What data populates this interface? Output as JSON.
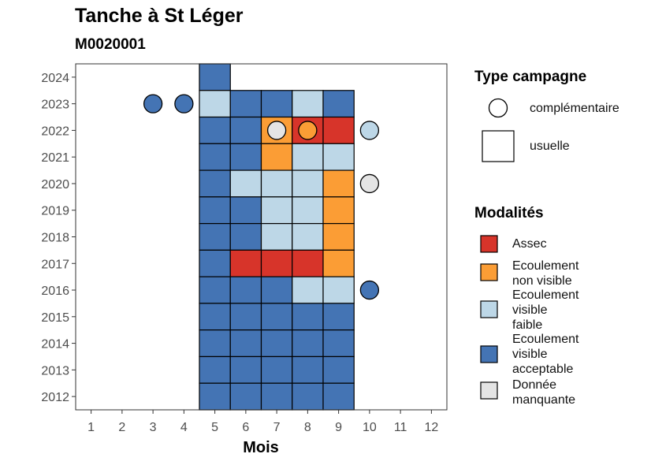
{
  "title": "Tanche à St Léger",
  "subtitle": "M0020001",
  "chart_data": {
    "type": "heatmap",
    "xlabel": "Mois",
    "ylabel": "",
    "x_ticks": [
      1,
      2,
      3,
      4,
      5,
      6,
      7,
      8,
      9,
      10,
      11,
      12
    ],
    "y_ticks": [
      2012,
      2013,
      2014,
      2015,
      2016,
      2017,
      2018,
      2019,
      2020,
      2021,
      2022,
      2023,
      2024
    ],
    "xlim": [
      0.5,
      12.5
    ],
    "ylim": [
      2011.5,
      2024.5
    ],
    "grid": false,
    "colors": {
      "Assec": "#d7342a",
      "Ecoulement non visible": "#fb9d35",
      "Ecoulement visible faible": "#bdd7e7",
      "Ecoulement visible acceptable": "#4474b4",
      "Donnée manquante": "#e4e4e4"
    },
    "usuelle": [
      {
        "year": 2024,
        "month": 5,
        "modalite": "Ecoulement visible acceptable"
      },
      {
        "year": 2023,
        "month": 5,
        "modalite": "Ecoulement visible faible"
      },
      {
        "year": 2023,
        "month": 6,
        "modalite": "Ecoulement visible acceptable"
      },
      {
        "year": 2023,
        "month": 7,
        "modalite": "Ecoulement visible acceptable"
      },
      {
        "year": 2023,
        "month": 8,
        "modalite": "Ecoulement visible faible"
      },
      {
        "year": 2023,
        "month": 9,
        "modalite": "Ecoulement visible acceptable"
      },
      {
        "year": 2022,
        "month": 5,
        "modalite": "Ecoulement visible acceptable"
      },
      {
        "year": 2022,
        "month": 6,
        "modalite": "Ecoulement visible acceptable"
      },
      {
        "year": 2022,
        "month": 7,
        "modalite": "Ecoulement non visible"
      },
      {
        "year": 2022,
        "month": 8,
        "modalite": "Assec"
      },
      {
        "year": 2022,
        "month": 9,
        "modalite": "Assec"
      },
      {
        "year": 2021,
        "month": 5,
        "modalite": "Ecoulement visible acceptable"
      },
      {
        "year": 2021,
        "month": 6,
        "modalite": "Ecoulement visible acceptable"
      },
      {
        "year": 2021,
        "month": 7,
        "modalite": "Ecoulement non visible"
      },
      {
        "year": 2021,
        "month": 8,
        "modalite": "Ecoulement visible faible"
      },
      {
        "year": 2021,
        "month": 9,
        "modalite": "Ecoulement visible faible"
      },
      {
        "year": 2020,
        "month": 5,
        "modalite": "Ecoulement visible acceptable"
      },
      {
        "year": 2020,
        "month": 6,
        "modalite": "Ecoulement visible faible"
      },
      {
        "year": 2020,
        "month": 7,
        "modalite": "Ecoulement visible faible"
      },
      {
        "year": 2020,
        "month": 8,
        "modalite": "Ecoulement visible faible"
      },
      {
        "year": 2020,
        "month": 9,
        "modalite": "Ecoulement non visible"
      },
      {
        "year": 2019,
        "month": 5,
        "modalite": "Ecoulement visible acceptable"
      },
      {
        "year": 2019,
        "month": 6,
        "modalite": "Ecoulement visible acceptable"
      },
      {
        "year": 2019,
        "month": 7,
        "modalite": "Ecoulement visible faible"
      },
      {
        "year": 2019,
        "month": 8,
        "modalite": "Ecoulement visible faible"
      },
      {
        "year": 2019,
        "month": 9,
        "modalite": "Ecoulement non visible"
      },
      {
        "year": 2018,
        "month": 5,
        "modalite": "Ecoulement visible acceptable"
      },
      {
        "year": 2018,
        "month": 6,
        "modalite": "Ecoulement visible acceptable"
      },
      {
        "year": 2018,
        "month": 7,
        "modalite": "Ecoulement visible faible"
      },
      {
        "year": 2018,
        "month": 8,
        "modalite": "Ecoulement visible faible"
      },
      {
        "year": 2018,
        "month": 9,
        "modalite": "Ecoulement non visible"
      },
      {
        "year": 2017,
        "month": 5,
        "modalite": "Ecoulement visible acceptable"
      },
      {
        "year": 2017,
        "month": 6,
        "modalite": "Assec"
      },
      {
        "year": 2017,
        "month": 7,
        "modalite": "Assec"
      },
      {
        "year": 2017,
        "month": 8,
        "modalite": "Assec"
      },
      {
        "year": 2017,
        "month": 9,
        "modalite": "Ecoulement non visible"
      },
      {
        "year": 2016,
        "month": 5,
        "modalite": "Ecoulement visible acceptable"
      },
      {
        "year": 2016,
        "month": 6,
        "modalite": "Ecoulement visible acceptable"
      },
      {
        "year": 2016,
        "month": 7,
        "modalite": "Ecoulement visible acceptable"
      },
      {
        "year": 2016,
        "month": 8,
        "modalite": "Ecoulement visible faible"
      },
      {
        "year": 2016,
        "month": 9,
        "modalite": "Ecoulement visible faible"
      },
      {
        "year": 2015,
        "month": 5,
        "modalite": "Ecoulement visible acceptable"
      },
      {
        "year": 2015,
        "month": 6,
        "modalite": "Ecoulement visible acceptable"
      },
      {
        "year": 2015,
        "month": 7,
        "modalite": "Ecoulement visible acceptable"
      },
      {
        "year": 2015,
        "month": 8,
        "modalite": "Ecoulement visible acceptable"
      },
      {
        "year": 2015,
        "month": 9,
        "modalite": "Ecoulement visible acceptable"
      },
      {
        "year": 2014,
        "month": 5,
        "modalite": "Ecoulement visible acceptable"
      },
      {
        "year": 2014,
        "month": 6,
        "modalite": "Ecoulement visible acceptable"
      },
      {
        "year": 2014,
        "month": 7,
        "modalite": "Ecoulement visible acceptable"
      },
      {
        "year": 2014,
        "month": 8,
        "modalite": "Ecoulement visible acceptable"
      },
      {
        "year": 2014,
        "month": 9,
        "modalite": "Ecoulement visible acceptable"
      },
      {
        "year": 2013,
        "month": 5,
        "modalite": "Ecoulement visible acceptable"
      },
      {
        "year": 2013,
        "month": 6,
        "modalite": "Ecoulement visible acceptable"
      },
      {
        "year": 2013,
        "month": 7,
        "modalite": "Ecoulement visible acceptable"
      },
      {
        "year": 2013,
        "month": 8,
        "modalite": "Ecoulement visible acceptable"
      },
      {
        "year": 2013,
        "month": 9,
        "modalite": "Ecoulement visible acceptable"
      },
      {
        "year": 2012,
        "month": 5,
        "modalite": "Ecoulement visible acceptable"
      },
      {
        "year": 2012,
        "month": 6,
        "modalite": "Ecoulement visible acceptable"
      },
      {
        "year": 2012,
        "month": 7,
        "modalite": "Ecoulement visible acceptable"
      },
      {
        "year": 2012,
        "month": 8,
        "modalite": "Ecoulement visible acceptable"
      },
      {
        "year": 2012,
        "month": 9,
        "modalite": "Ecoulement visible acceptable"
      }
    ],
    "complementaire": [
      {
        "year": 2023,
        "month": 3,
        "modalite": "Ecoulement visible acceptable"
      },
      {
        "year": 2023,
        "month": 4,
        "modalite": "Ecoulement visible acceptable"
      },
      {
        "year": 2022,
        "month": 7,
        "modalite": "Donnée manquante"
      },
      {
        "year": 2022,
        "month": 8,
        "modalite": "Ecoulement non visible"
      },
      {
        "year": 2022,
        "month": 10,
        "modalite": "Ecoulement visible faible"
      },
      {
        "year": 2020,
        "month": 10,
        "modalite": "Donnée manquante"
      },
      {
        "year": 2016,
        "month": 10,
        "modalite": "Ecoulement visible acceptable"
      }
    ]
  },
  "legend_type": {
    "title": "Type campagne",
    "items": [
      {
        "key": "complementaire",
        "label": "complémentaire"
      },
      {
        "key": "usuelle",
        "label": "usuelle"
      }
    ]
  },
  "legend_modalites": {
    "title": "Modalités",
    "items": [
      {
        "key": "Assec",
        "label": "Assec"
      },
      {
        "key": "Ecoulement non visible",
        "label": "Ecoulement\nnon visible"
      },
      {
        "key": "Ecoulement visible faible",
        "label": "Ecoulement\nvisible\nfaible"
      },
      {
        "key": "Ecoulement visible acceptable",
        "label": "Ecoulement\nvisible\nacceptable"
      },
      {
        "key": "Donnée manquante",
        "label": "Donnée\nmanquante"
      }
    ]
  }
}
